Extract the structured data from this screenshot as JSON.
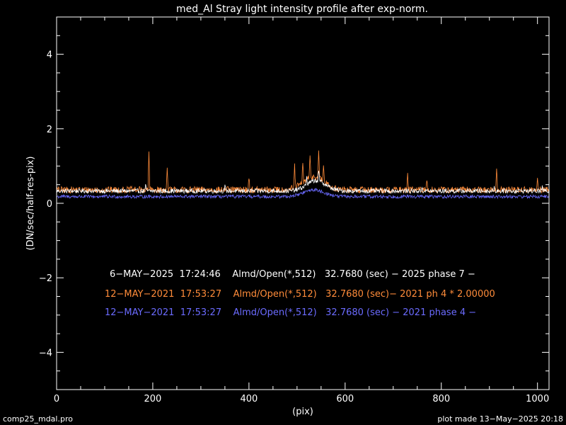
{
  "chart_data": {
    "type": "line",
    "title": "med_Al Stray light intensity profile after exp-norm.",
    "xlabel": "(pix)",
    "ylabel": "(DN/sec/half-res-pix)",
    "xlim": [
      0,
      1024
    ],
    "ylim": [
      -5,
      5
    ],
    "x_ticks": [
      "0",
      "200",
      "400",
      "600",
      "800",
      "1000"
    ],
    "y_ticks": [
      "-4",
      "-2",
      "0",
      "2",
      "4"
    ],
    "grid": false,
    "legend_position": "center-bottom",
    "series": [
      {
        "name": "6−MAY−2025  17:24:46    Almd/Open(*,512)   32.7680 (sec) − 2025 phase 7 −",
        "color": "#ffffff",
        "baseline": 0.33,
        "noise": 0.06,
        "bump": {
          "center": 540,
          "width": 28,
          "height": 0.28
        },
        "spikes": [
          [
            185,
            0.15
          ],
          [
            350,
            0.12
          ],
          [
            520,
            0.2
          ],
          [
            545,
            0.28
          ],
          [
            760,
            0.1
          ],
          [
            910,
            0.12
          ],
          [
            1010,
            0.12
          ]
        ]
      },
      {
        "name": "12−MAY−2021  17:53:27    Almd/Open(*,512)   32.7680 (sec)− 2021 ph 4 * 2.00000",
        "color": "#ff8c3a",
        "baseline": 0.36,
        "noise": 0.09,
        "bump": {
          "center": 535,
          "width": 30,
          "height": 0.35
        },
        "spikes": [
          [
            192,
            1.05
          ],
          [
            230,
            0.55
          ],
          [
            400,
            0.35
          ],
          [
            495,
            0.6
          ],
          [
            512,
            0.55
          ],
          [
            527,
            0.55
          ],
          [
            545,
            0.75
          ],
          [
            555,
            0.45
          ],
          [
            730,
            0.4
          ],
          [
            770,
            0.3
          ],
          [
            915,
            0.6
          ],
          [
            1000,
            0.25
          ]
        ]
      },
      {
        "name": "12−MAY−2021  17:53:27    Almd/Open(*,512)   32.7680 (sec) − 2021 phase 4 −",
        "color": "#6b6bff",
        "baseline": 0.18,
        "noise": 0.045,
        "bump": {
          "center": 535,
          "width": 30,
          "height": 0.18
        },
        "spikes": []
      }
    ]
  },
  "footer": {
    "left": "comp25_mdal.pro",
    "right": "plot made 13−May−2025 20:18"
  }
}
